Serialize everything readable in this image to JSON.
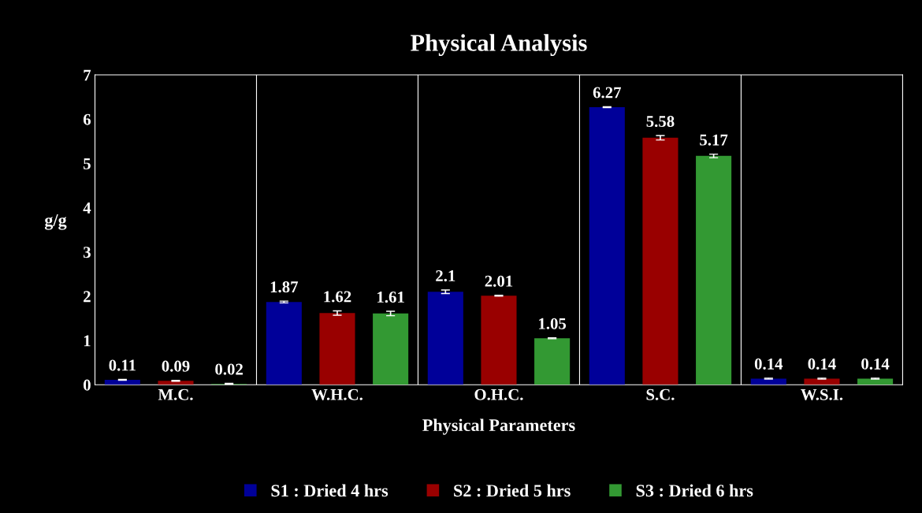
{
  "chart_data": {
    "type": "bar",
    "title": "Physical Analysis",
    "xlabel": "Physical Parameters",
    "ylabel": "g/g",
    "categories": [
      "M.C.",
      "W.H.C.",
      "O.H.C.",
      "S.C.",
      "W.S.I."
    ],
    "series": [
      {
        "name": "S1 : Dried 4 hrs",
        "color": "#000099",
        "values": [
          0.11,
          1.87,
          2.1,
          6.27,
          0.14
        ],
        "errors": [
          0.01,
          0.02,
          0.04,
          0.01,
          0.01
        ]
      },
      {
        "name": "S2 : Dried 5 hrs",
        "color": "#990000",
        "values": [
          0.09,
          1.62,
          2.01,
          5.58,
          0.14
        ],
        "errors": [
          0.01,
          0.05,
          0.01,
          0.05,
          0.01
        ]
      },
      {
        "name": "S3 : Dried 6 hrs",
        "color": "#339933",
        "values": [
          0.02,
          1.61,
          1.05,
          5.17,
          0.14
        ],
        "errors": [
          0.01,
          0.05,
          0.01,
          0.04,
          0.01
        ]
      }
    ],
    "ylim": [
      0,
      7
    ],
    "yticks": [
      0,
      1,
      2,
      3,
      4,
      5,
      6,
      7
    ],
    "grid": "x",
    "legend": "bottom",
    "data_labels": true
  }
}
